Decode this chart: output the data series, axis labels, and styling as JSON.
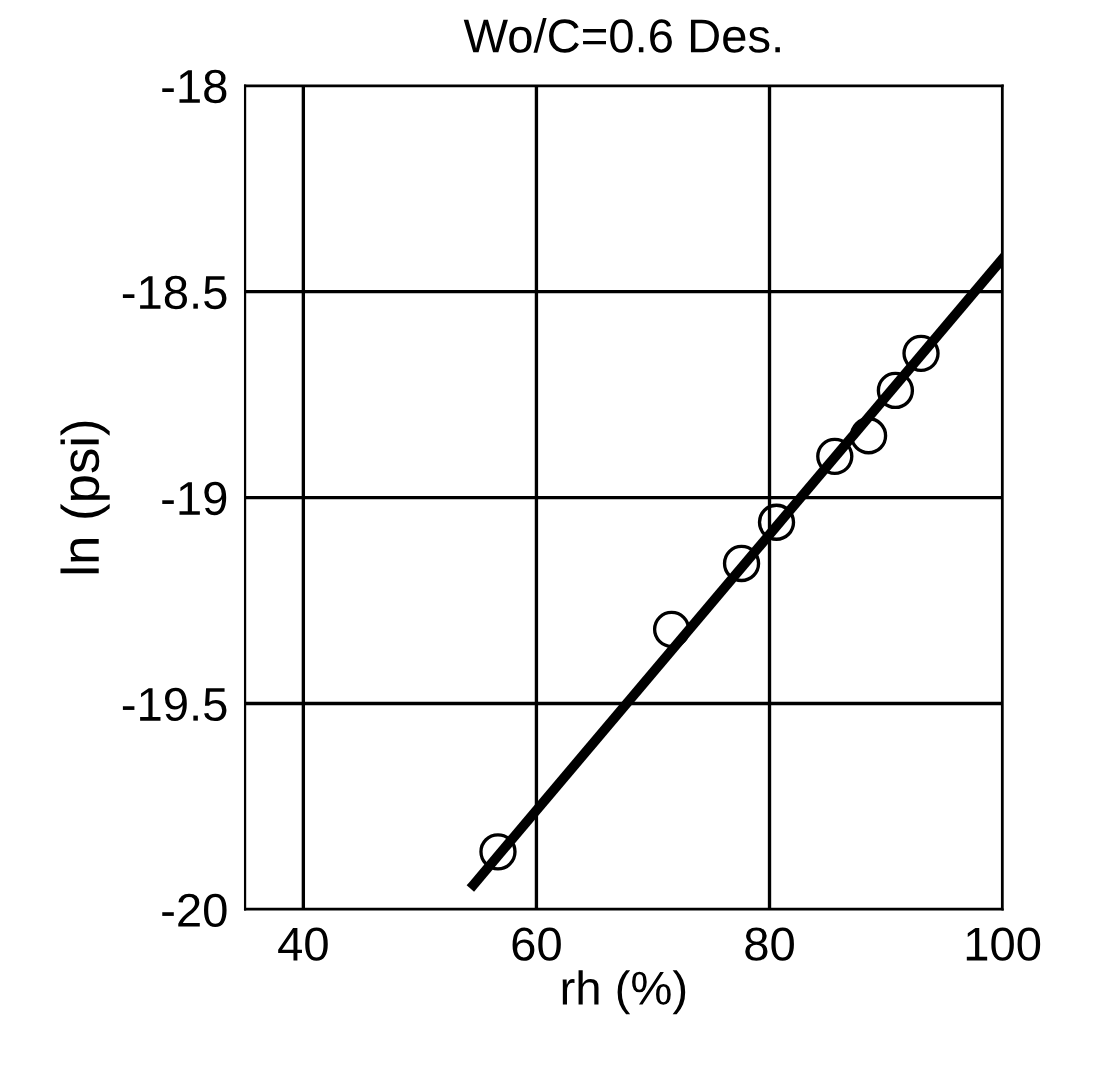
{
  "chart_data": {
    "type": "scatter",
    "title": "Wo/C=0.6 Des.",
    "xlabel": "rh (%)",
    "ylabel": "ln (psi)",
    "series": [
      {
        "color": "#000000",
        "marker": "circle",
        "x": [
          56.7,
          71.6,
          77.6,
          80.6,
          85.6,
          88.5,
          90.8,
          93.0
        ],
        "values": [
          -19.86,
          -19.32,
          -19.16,
          -19.06,
          -18.9,
          -18.85,
          -18.74,
          -18.65
        ]
      },
      {
        "type": "line",
        "color": "#000000",
        "marker": "none",
        "x": [
          54.6,
          100
        ],
        "values": [
          -19.94,
          -18.42
        ]
      }
    ],
    "xlim": [
      35,
      100
    ],
    "xticks": [
      40,
      60,
      80,
      100
    ],
    "ylim": [
      -20,
      -18
    ],
    "yticks": [
      -20,
      -19.5,
      -19,
      -18.5,
      -18
    ],
    "grid": true,
    "legend": false
  }
}
